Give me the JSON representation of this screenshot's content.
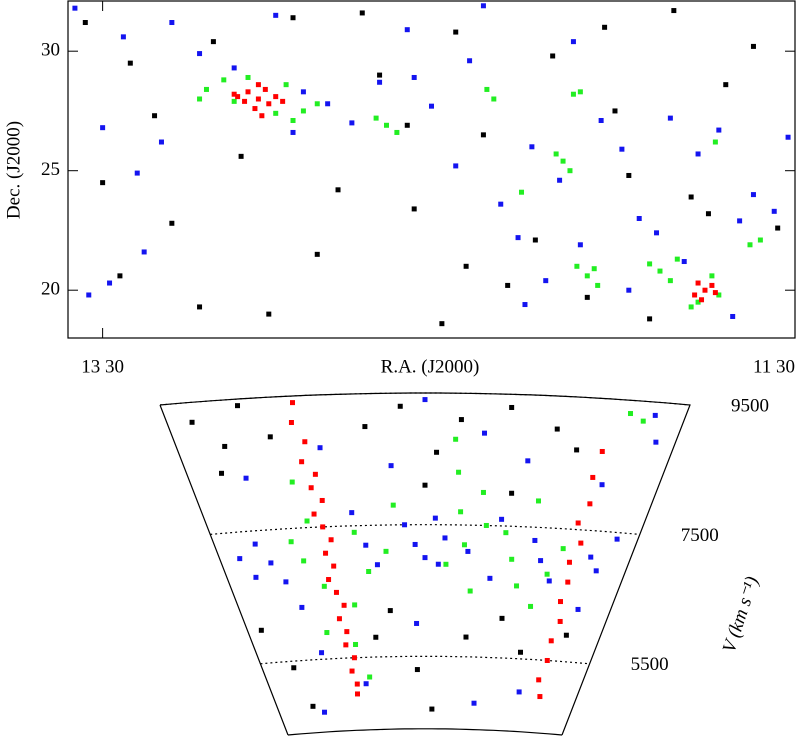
{
  "chart_data": [
    {
      "type": "scatter",
      "xlabel": "R.A. (J2000)",
      "ylabel": "Dec. (J2000)",
      "xlim": [
        13.6,
        11.5
      ],
      "ylim": [
        18,
        32.1
      ],
      "xticks": [
        {
          "value": 13.5,
          "label": "13 30"
        },
        {
          "value": 11.5,
          "label": "11 30"
        }
      ],
      "yticks": [
        20,
        25,
        30
      ],
      "series": [
        {
          "color": "#000000",
          "x": [
            13.55,
            13.42,
            13.3,
            13.18,
            13.02,
            12.88,
            12.75,
            12.6,
            12.48,
            12.33,
            12.2,
            12.05,
            11.92,
            11.8,
            11.62,
            13.5,
            13.35,
            13.1,
            12.95,
            12.7,
            12.52,
            12.4,
            12.25,
            12.1,
            11.98,
            11.85,
            11.7,
            11.55,
            13.45,
            13.22,
            12.82,
            12.62,
            12.45,
            12.02,
            11.75
          ],
          "y": [
            31.2,
            29.5,
            22.8,
            30.4,
            19.0,
            21.5,
            31.6,
            23.4,
            30.8,
            20.2,
            29.8,
            31.0,
            18.8,
            23.9,
            30.2,
            24.5,
            27.3,
            25.6,
            31.4,
            29.0,
            18.6,
            26.5,
            22.1,
            19.7,
            24.8,
            31.7,
            28.6,
            22.6,
            20.6,
            19.3,
            24.2,
            26.9,
            21.0,
            27.5,
            23.2
          ]
        },
        {
          "color": "#1414f0",
          "x": [
            13.58,
            13.5,
            13.44,
            13.38,
            13.3,
            13.22,
            13.12,
            13.0,
            12.92,
            12.85,
            12.78,
            12.7,
            12.62,
            12.55,
            12.48,
            12.4,
            12.35,
            12.3,
            12.26,
            12.22,
            12.18,
            12.12,
            12.06,
            12.0,
            11.95,
            11.9,
            11.86,
            11.82,
            11.78,
            11.72,
            11.68,
            11.62,
            11.56,
            11.52,
            13.54,
            13.48,
            13.4,
            13.33,
            12.95,
            12.6,
            12.44,
            12.28,
            12.14,
            11.98,
            11.66
          ],
          "y": [
            31.8,
            26.8,
            30.6,
            21.6,
            31.2,
            29.9,
            29.3,
            31.5,
            28.3,
            27.8,
            27.0,
            28.7,
            30.9,
            27.7,
            25.2,
            31.9,
            23.6,
            22.2,
            26.0,
            20.4,
            24.6,
            21.9,
            27.1,
            25.9,
            23.0,
            22.4,
            27.2,
            21.2,
            25.7,
            26.7,
            18.9,
            24.0,
            23.3,
            26.4,
            19.8,
            20.3,
            24.9,
            26.2,
            26.6,
            28.9,
            29.6,
            19.4,
            30.4,
            20.0,
            22.9
          ]
        },
        {
          "color": "#22ee22",
          "x": [
            13.2,
            13.15,
            13.12,
            13.08,
            13.0,
            12.97,
            12.92,
            12.88,
            13.22,
            12.95,
            12.68,
            12.65,
            12.71,
            12.39,
            12.37,
            12.14,
            12.12,
            12.17,
            12.15,
            12.19,
            12.29,
            12.1,
            12.07,
            12.13,
            12.08,
            11.89,
            11.86,
            11.92,
            11.84,
            11.78,
            11.8,
            11.72,
            11.74,
            11.73,
            11.63,
            11.6
          ],
          "y": [
            28.4,
            28.8,
            27.9,
            28.9,
            27.4,
            28.6,
            27.5,
            27.8,
            28.0,
            27.1,
            26.9,
            26.6,
            27.2,
            28.4,
            28.0,
            28.2,
            28.3,
            25.4,
            25.0,
            25.7,
            24.1,
            20.6,
            20.2,
            21.0,
            20.9,
            20.8,
            20.4,
            21.1,
            21.3,
            19.5,
            19.3,
            19.8,
            20.6,
            26.2,
            21.9,
            22.1
          ]
        },
        {
          "color": "#ff0000",
          "x": [
            13.05,
            13.08,
            13.02,
            13.06,
            13.03,
            13.09,
            13.0,
            13.05,
            13.11,
            13.04,
            13.12,
            12.98,
            11.76,
            11.79,
            11.74,
            11.77,
            11.73,
            11.78
          ],
          "y": [
            28.0,
            28.3,
            27.8,
            27.6,
            28.4,
            27.9,
            28.1,
            28.6,
            28.1,
            27.3,
            28.2,
            27.9,
            20.0,
            19.8,
            20.2,
            19.6,
            19.9,
            20.3
          ]
        }
      ]
    },
    {
      "type": "cone",
      "ylabel": "V (km s⁻¹)",
      "xlim": [
        13.6,
        11.5
      ],
      "ylim": [
        4400,
        9500
      ],
      "yticks": [
        5500,
        7500,
        9500
      ],
      "series": [
        {
          "color": "#000000",
          "x": [
            13.5,
            13.4,
            13.45,
            13.3,
            13.2,
            13.52,
            13.4,
            13.35,
            12.8,
            12.65,
            12.5,
            12.4,
            12.2,
            12.0,
            11.9,
            12.75,
            12.6,
            12.3,
            12.1,
            11.95,
            11.7,
            12.85,
            12.5,
            12.15,
            12.55
          ],
          "y": [
            9200,
            8800,
            8400,
            9400,
            8900,
            6000,
            5400,
            4800,
            9000,
            9300,
            8600,
            9100,
            9300,
            9000,
            8700,
            6200,
            5300,
            5800,
            6100,
            5600,
            5900,
            5800,
            4700,
            8000,
            8100
          ]
        },
        {
          "color": "#1414f0",
          "x": [
            13.5,
            13.45,
            13.4,
            13.35,
            13.3,
            13.25,
            13.2,
            13.28,
            12.9,
            12.85,
            12.8,
            12.65,
            12.6,
            12.55,
            12.5,
            12.45,
            12.48,
            12.33,
            12.2,
            12.18,
            12.0,
            11.95,
            11.88,
            11.7,
            11.65,
            11.6,
            11.58,
            11.62,
            11.75,
            12.1,
            12.3,
            12.55,
            12.7,
            13.0,
            13.35,
            12.95,
            12.2,
            11.9,
            12.6,
            11.68
          ],
          "y": [
            7100,
            6800,
            7300,
            7000,
            6700,
            6300,
            5600,
            4700,
            7700,
            7200,
            6900,
            7500,
            7200,
            7000,
            7600,
            7300,
            6900,
            7100,
            6700,
            7600,
            7300,
            7000,
            6700,
            7100,
            6900,
            7400,
            8900,
            9300,
            8200,
            8500,
            8900,
            9400,
            8400,
            8700,
            8300,
            5100,
            4800,
            5000,
            6000,
            6300
          ]
        },
        {
          "color": "#22ee22",
          "x": [
            13.15,
            13.12,
            13.18,
            13.1,
            12.95,
            12.98,
            12.92,
            13.14,
            12.9,
            12.75,
            12.7,
            12.42,
            12.4,
            12.38,
            12.35,
            12.44,
            12.3,
            12.28,
            12.25,
            12.1,
            12.05,
            12.15,
            11.9,
            11.85,
            11.72,
            11.66,
            11.95,
            12.02,
            13.22,
            12.85
          ],
          "y": [
            8200,
            7600,
            7000,
            6600,
            6300,
            5700,
            5200,
            5900,
            7400,
            7100,
            7800,
            8800,
            8300,
            7700,
            7200,
            6900,
            6500,
            8000,
            7500,
            7000,
            6600,
            7400,
            6800,
            7200,
            9300,
            9200,
            6300,
            7900,
            7300,
            6800
          ]
        },
        {
          "color": "#ff0000",
          "x": [
            13.08,
            13.1,
            13.06,
            13.09,
            13.04,
            13.07,
            13.03,
            13.08,
            13.05,
            13.02,
            13.06,
            13.03,
            13.07,
            13.04,
            13.01,
            13.05,
            13.02,
            13.04,
            13.0,
            13.03,
            13.01,
            13.02,
            11.79,
            11.8,
            11.78,
            11.81,
            11.77,
            11.8,
            11.78,
            11.79,
            11.76,
            11.78,
            11.77,
            11.79,
            11.75
          ],
          "y": [
            9400,
            9100,
            8800,
            8500,
            8300,
            8100,
            7900,
            7700,
            7500,
            7300,
            7100,
            6900,
            6700,
            6500,
            6300,
            6100,
            5900,
            5700,
            5500,
            5300,
            5100,
            4950,
            8700,
            8300,
            7900,
            7600,
            7300,
            7000,
            6700,
            6400,
            6100,
            5800,
            5500,
            5200,
            4950
          ]
        }
      ]
    }
  ]
}
